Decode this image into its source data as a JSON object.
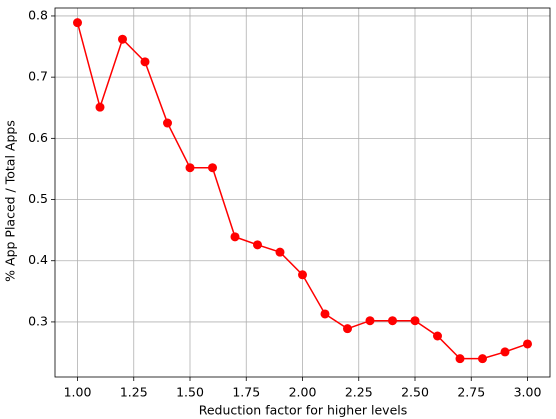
{
  "chart_data": {
    "type": "line",
    "x_label": "Reduction factor for higher levels",
    "y_label": "% App Placed / Total Apps",
    "x": [
      1.0,
      1.1,
      1.2,
      1.3,
      1.4,
      1.5,
      1.6,
      1.7,
      1.8,
      1.9,
      2.0,
      2.1,
      2.2,
      2.3,
      2.4,
      2.5,
      2.6,
      2.7,
      2.8,
      2.9,
      3.0
    ],
    "values": [
      0.789,
      0.651,
      0.762,
      0.725,
      0.625,
      0.552,
      0.552,
      0.439,
      0.426,
      0.414,
      0.377,
      0.313,
      0.289,
      0.302,
      0.302,
      0.302,
      0.277,
      0.24,
      0.24,
      0.251,
      0.264
    ],
    "color": "#ff0000",
    "xlim": [
      0.9,
      3.1
    ],
    "ylim": [
      0.21,
      0.813
    ],
    "xticks": [
      {
        "value": 1.0,
        "label": "1.00"
      },
      {
        "value": 1.25,
        "label": "1.25"
      },
      {
        "value": 1.5,
        "label": "1.50"
      },
      {
        "value": 1.75,
        "label": "1.75"
      },
      {
        "value": 2.0,
        "label": "2.00"
      },
      {
        "value": 2.25,
        "label": "2.25"
      },
      {
        "value": 2.5,
        "label": "2.50"
      },
      {
        "value": 2.75,
        "label": "2.75"
      },
      {
        "value": 3.0,
        "label": "3.00"
      }
    ],
    "yticks": [
      0.3,
      0.4,
      0.5,
      0.6,
      0.7,
      0.8
    ],
    "grid": true
  }
}
